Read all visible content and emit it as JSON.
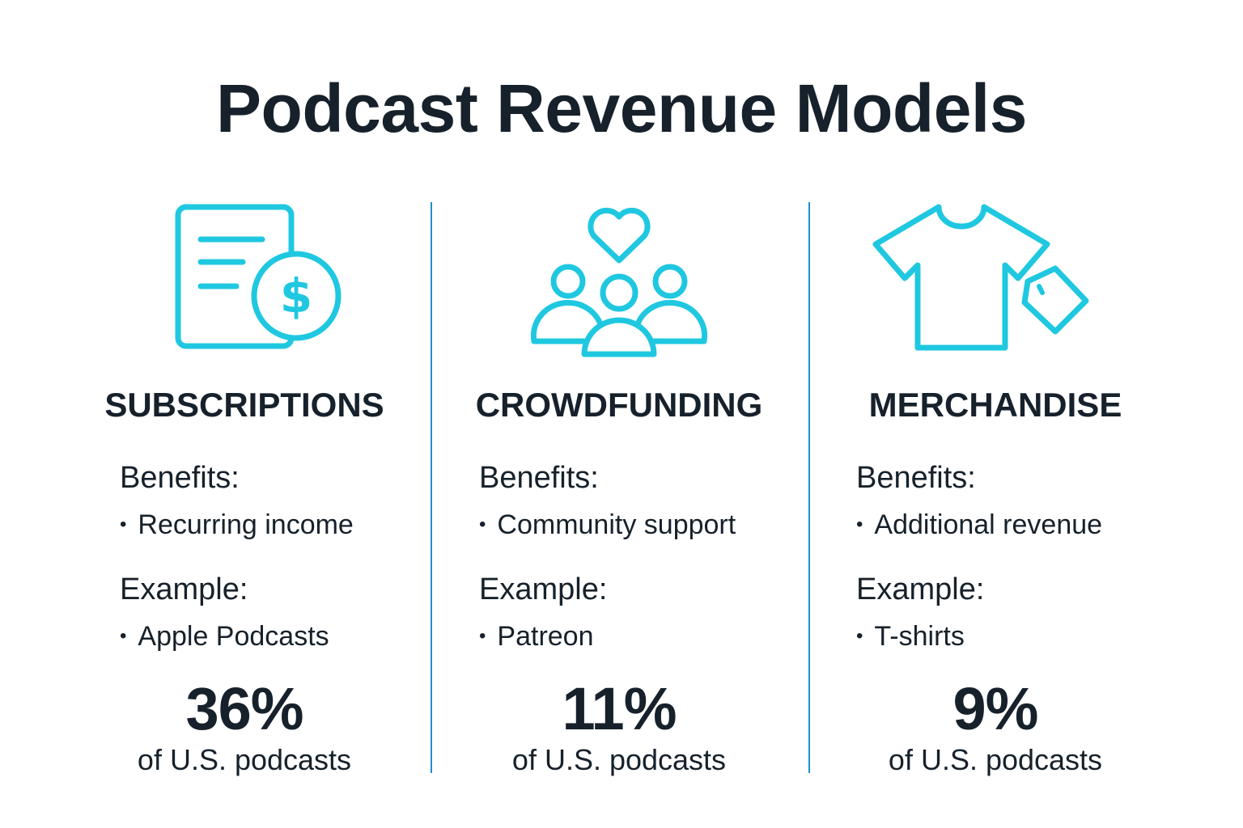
{
  "title": "Podcast Revenue Models",
  "accent_color": "#1fc8e0",
  "divider_color": "#1d8fcf",
  "columns": [
    {
      "icon": "document-dollar-icon",
      "heading": "SUBSCRIPTIONS",
      "benefits_label": "Benefits:",
      "benefit": "Recurring income",
      "example_label": "Example:",
      "example": "Apple Podcasts",
      "percent": "36%",
      "percent_caption": "of U.S. podcasts"
    },
    {
      "icon": "community-heart-icon",
      "heading": "CROWDFUNDING",
      "benefits_label": "Benefits:",
      "benefit": "Community support",
      "example_label": "Example:",
      "example": "Patreon",
      "percent": "11%",
      "percent_caption": "of U.S. podcasts"
    },
    {
      "icon": "tshirt-tag-icon",
      "heading": "MERCHANDISE",
      "benefits_label": "Benefits:",
      "benefit": "Additional revenue",
      "example_label": "Example:",
      "example": "T-shirts",
      "percent": "9%",
      "percent_caption": "of U.S. podcasts"
    }
  ]
}
